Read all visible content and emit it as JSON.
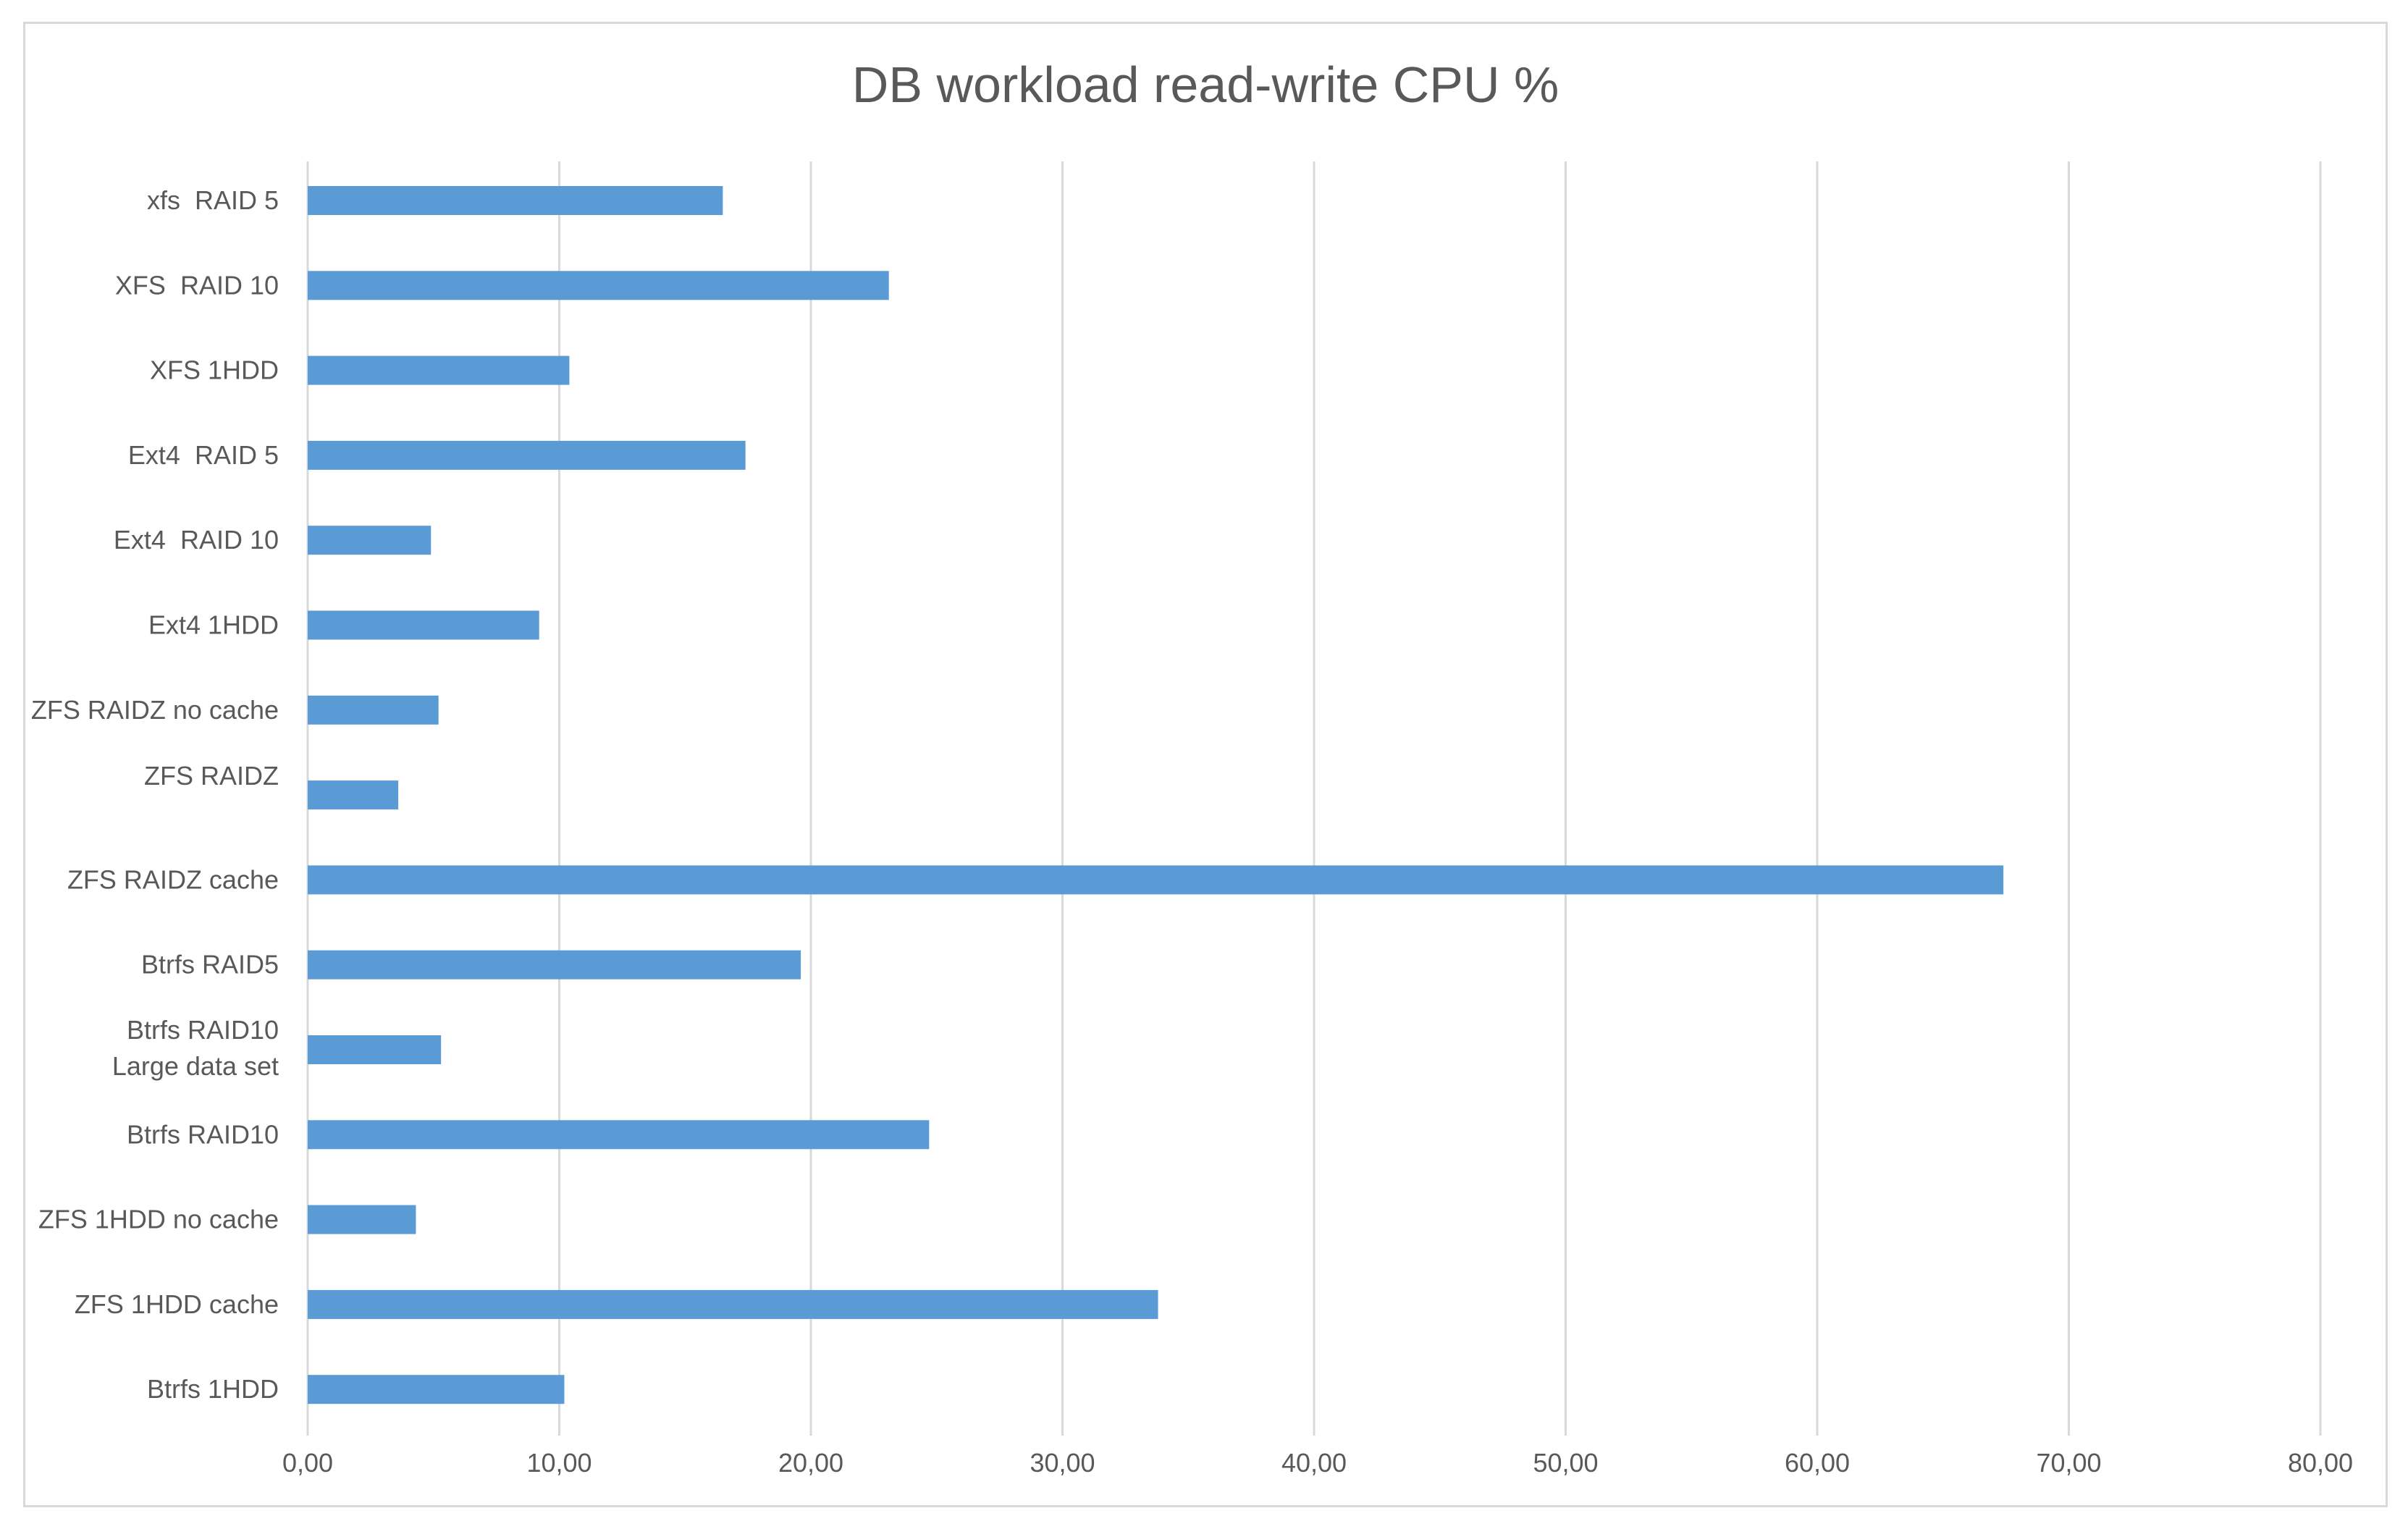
{
  "chart_data": {
    "type": "bar",
    "orientation": "horizontal",
    "title": "DB workload read-write CPU %",
    "xlabel": "",
    "ylabel": "",
    "xlim": [
      0,
      80
    ],
    "x_ticks": [
      0,
      10,
      20,
      30,
      40,
      50,
      60,
      70,
      80
    ],
    "x_tick_labels": [
      "0,00",
      "10,00",
      "20,00",
      "30,00",
      "40,00",
      "50,00",
      "60,00",
      "70,00",
      "80,00"
    ],
    "grid": "vertical",
    "legend": "none",
    "bar_color": "#5b9bd5",
    "categories": [
      [
        "xfs  RAID 5"
      ],
      [
        "XFS  RAID 10"
      ],
      [
        "XFS 1HDD"
      ],
      [
        "Ext4  RAID 5"
      ],
      [
        "Ext4  RAID 10"
      ],
      [
        "Ext4 1HDD"
      ],
      [
        "ZFS RAIDZ no cache"
      ],
      [
        "ZFS RAIDZ"
      ],
      [
        "ZFS RAIDZ cache"
      ],
      [
        "Btrfs RAID5"
      ],
      [
        "Btrfs RAID10",
        "Large data set"
      ],
      [
        "Btrfs RAID10"
      ],
      [
        "ZFS 1HDD no cache"
      ],
      [
        "ZFS 1HDD cache"
      ],
      [
        "Btrfs 1HDD"
      ]
    ],
    "values": [
      16.5,
      23.1,
      10.4,
      17.4,
      4.9,
      9.2,
      5.2,
      3.6,
      67.4,
      19.6,
      5.3,
      24.7,
      4.3,
      33.8,
      10.2
    ]
  }
}
